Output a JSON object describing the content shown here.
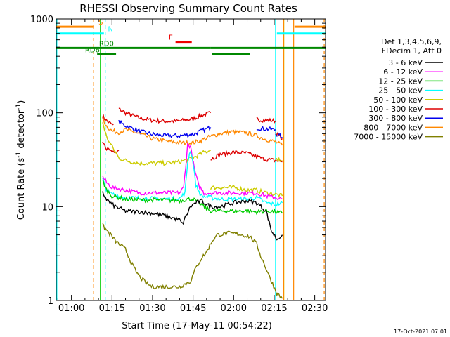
{
  "chart_data": {
    "type": "line",
    "title": "RHESSI Observing Summary Count Rates",
    "xlabel": "Start Time (17-May-11 00:54:22)",
    "ylabel_parts": {
      "main": "Count Rate (s",
      "sup": "-1",
      "rest": " detector",
      "sup2": "-1",
      "end": ")"
    },
    "xlim_minutes": [
      54.37,
      154.0
    ],
    "ylim": [
      1,
      1000
    ],
    "yscale": "log",
    "x_ticks": [
      {
        "minute": 60,
        "label": "01:00"
      },
      {
        "minute": 75,
        "label": "01:15"
      },
      {
        "minute": 90,
        "label": "01:30"
      },
      {
        "minute": 105,
        "label": "01:45"
      },
      {
        "minute": 120,
        "label": "02:00"
      },
      {
        "minute": 135,
        "label": "02:15"
      },
      {
        "minute": 150,
        "label": "02:30"
      }
    ],
    "y_ticks": [
      {
        "value": 1,
        "label": "1"
      },
      {
        "value": 10,
        "label": "10"
      },
      {
        "value": 100,
        "label": "100"
      },
      {
        "value": 1000,
        "label": "1000"
      }
    ],
    "legend": {
      "header": [
        "Det 1,3,4,5,6,9,",
        "FDecim 1, Att 0"
      ],
      "placement": "right",
      "entries": [
        {
          "label": "3 - 6 keV",
          "color": "#000000"
        },
        {
          "label": "6 - 12 keV",
          "color": "#ff00ff"
        },
        {
          "label": "12 - 25 keV",
          "color": "#00cc00"
        },
        {
          "label": "25 - 50 keV",
          "color": "#00ffff"
        },
        {
          "label": "50 - 100 keV",
          "color": "#cccc00"
        },
        {
          "label": "100 - 300 keV",
          "color": "#dd0000"
        },
        {
          "label": "300 - 800 keV",
          "color": "#0000ee"
        },
        {
          "label": "800 - 7000 keV",
          "color": "#ff8800"
        },
        {
          "label": "7000 - 15000 keV",
          "color": "#808000"
        }
      ]
    },
    "series": [
      {
        "color": "#dd0000",
        "segments": [
          [
            [
              71.5,
              92
            ],
            [
              72.5,
              85
            ],
            [
              74,
              78
            ],
            [
              75.5,
              74
            ]
          ],
          [
            [
              77.5,
              110
            ],
            [
              80,
              100
            ],
            [
              85,
              88
            ],
            [
              90,
              83
            ],
            [
              95,
              81
            ],
            [
              100,
              82
            ],
            [
              105,
              86
            ],
            [
              108,
              93
            ],
            [
              111.5,
              100
            ]
          ],
          [
            [
              128.5,
              86
            ],
            [
              130,
              84
            ],
            [
              133,
              83
            ],
            [
              135.5,
              82
            ]
          ],
          [
            [
              135.5,
              62
            ],
            [
              138,
              53
            ]
          ]
        ]
      },
      {
        "color": "#0000ee",
        "segments": [
          [
            [
              77.5,
              80
            ],
            [
              80,
              73
            ],
            [
              85,
              64
            ],
            [
              90,
              59
            ],
            [
              95,
              57
            ],
            [
              100,
              57
            ],
            [
              105,
              59
            ],
            [
              108,
              64
            ],
            [
              111.5,
              70
            ]
          ],
          [
            [
              128.5,
              69
            ],
            [
              130,
              68
            ],
            [
              133,
              67
            ],
            [
              135.5,
              66
            ]
          ],
          [
            [
              135.5,
              60
            ],
            [
              138,
              55
            ]
          ]
        ]
      },
      {
        "color": "#ff8800",
        "segments": [
          [
            [
              71.5,
              88
            ],
            [
              73,
              72
            ],
            [
              75,
              64
            ],
            [
              77.5,
              62
            ],
            [
              80,
              66
            ],
            [
              85,
              60
            ],
            [
              90,
              53
            ],
            [
              95,
              50
            ],
            [
              100,
              48
            ],
            [
              105,
              48
            ],
            [
              108,
              51
            ],
            [
              111.5,
              56
            ],
            [
              115,
              60
            ],
            [
              120,
              63
            ],
            [
              125,
              61
            ],
            [
              128.5,
              57
            ],
            [
              132,
              52
            ],
            [
              135.5,
              49
            ],
            [
              138,
              45
            ]
          ]
        ]
      },
      {
        "color": "#dd0000",
        "segments": [
          [
            [
              71.5,
              48
            ],
            [
              73,
              42
            ],
            [
              75,
              39
            ],
            [
              77.5,
              40
            ]
          ],
          [
            [
              111.5,
              32
            ],
            [
              115,
              36
            ],
            [
              120,
              38
            ],
            [
              125,
              37
            ],
            [
              128.5,
              34
            ],
            [
              132,
              32
            ],
            [
              135.5,
              31
            ],
            [
              138,
              30
            ]
          ]
        ]
      },
      {
        "color": "#cccc00",
        "segments": [
          [
            [
              71.5,
              80
            ],
            [
              73,
              55
            ],
            [
              75,
              44
            ],
            [
              77.5,
              33
            ],
            [
              80,
              31
            ],
            [
              85,
              29
            ],
            [
              90,
              29
            ],
            [
              95,
              29
            ],
            [
              100,
              30
            ],
            [
              105,
              33
            ],
            [
              108,
              37
            ],
            [
              111.5,
              40
            ]
          ],
          [
            [
              111.5,
              16
            ],
            [
              115,
              16
            ],
            [
              120,
              16
            ],
            [
              125,
              15
            ],
            [
              128.5,
              15
            ],
            [
              132,
              14
            ],
            [
              135.5,
              13.5
            ],
            [
              138,
              13
            ]
          ],
          [
            [
              135.5,
              32
            ],
            [
              138,
              31
            ]
          ]
        ]
      },
      {
        "color": "#ff00ff",
        "segments": [
          [
            [
              71.5,
              21
            ],
            [
              73,
              18
            ],
            [
              75,
              16
            ],
            [
              80,
              15
            ],
            [
              85,
              14
            ],
            [
              90,
              14
            ],
            [
              95,
              14
            ],
            [
              100,
              14
            ],
            [
              101.5,
              16
            ],
            [
              103,
              46
            ],
            [
              104,
              44
            ],
            [
              105.5,
              25
            ],
            [
              107,
              17
            ],
            [
              109,
              14
            ],
            [
              111.5,
              14
            ],
            [
              115,
              14
            ],
            [
              120,
              14
            ],
            [
              125,
              14
            ],
            [
              128.5,
              14
            ],
            [
              132,
              13
            ],
            [
              135.5,
              12.5
            ],
            [
              138,
              12
            ]
          ]
        ]
      },
      {
        "color": "#00ffff",
        "segments": [
          [
            [
              71.5,
              20
            ],
            [
              72.5,
              16
            ],
            [
              74,
              14
            ],
            [
              77.5,
              13
            ],
            [
              80,
              12.5
            ],
            [
              85,
              12.3
            ],
            [
              90,
              12.2
            ],
            [
              95,
              12.1
            ],
            [
              100,
              12.2
            ],
            [
              102,
              14
            ],
            [
              103,
              30
            ],
            [
              104,
              40
            ],
            [
              105,
              30
            ],
            [
              106,
              17
            ],
            [
              108,
              13
            ],
            [
              111.5,
              12.5
            ],
            [
              115,
              12
            ],
            [
              120,
              12
            ],
            [
              125,
              12
            ],
            [
              128.5,
              12.5
            ],
            [
              132,
              11
            ],
            [
              135.5,
              10.5
            ],
            [
              138,
              11
            ]
          ]
        ]
      },
      {
        "color": "#00cc00",
        "segments": [
          [
            [
              71.5,
              19
            ],
            [
              73,
              15
            ],
            [
              75,
              13
            ],
            [
              80,
              12
            ],
            [
              85,
              11.8
            ],
            [
              90,
              11.8
            ],
            [
              95,
              11.7
            ],
            [
              100,
              11.6
            ],
            [
              103,
              12
            ],
            [
              105,
              12
            ],
            [
              108,
              10.5
            ],
            [
              111.5,
              9
            ],
            [
              115,
              9
            ],
            [
              120,
              9
            ],
            [
              125,
              9
            ],
            [
              128.5,
              8.8
            ],
            [
              132,
              9
            ],
            [
              135.5,
              8.8
            ],
            [
              138,
              8.5
            ]
          ]
        ]
      },
      {
        "color": "#000000",
        "segments": [
          [
            [
              71.5,
              14
            ],
            [
              73,
              12
            ],
            [
              75,
              10.5
            ],
            [
              78,
              9.5
            ],
            [
              80,
              9
            ],
            [
              85,
              8.8
            ],
            [
              90,
              8.5
            ],
            [
              95,
              8.0
            ],
            [
              98,
              7.5
            ],
            [
              100,
              7.2
            ],
            [
              101,
              6.5
            ],
            [
              102,
              7.5
            ],
            [
              104,
              10
            ],
            [
              106,
              11
            ],
            [
              108,
              11.5
            ],
            [
              111.5,
              10
            ],
            [
              115,
              10
            ],
            [
              120,
              11
            ],
            [
              125,
              11.5
            ],
            [
              128.5,
              11
            ],
            [
              132,
              9
            ],
            [
              134,
              5.5
            ],
            [
              136,
              4.5
            ],
            [
              138,
              5
            ]
          ]
        ]
      },
      {
        "color": "#808000",
        "segments": [
          [
            [
              71.5,
              6.3
            ],
            [
              73,
              5.6
            ],
            [
              74.5,
              5.0
            ],
            [
              76,
              4.4
            ],
            [
              78,
              3.9
            ],
            [
              80,
              3.5
            ],
            [
              81,
              3.0
            ],
            [
              82.5,
              2.4
            ],
            [
              84,
              2.0
            ],
            [
              86,
              1.7
            ],
            [
              88,
              1.5
            ],
            [
              90,
              1.4
            ],
            [
              95,
              1.4
            ],
            [
              100,
              1.4
            ],
            [
              104,
              1.6
            ],
            [
              106,
              2.2
            ],
            [
              108,
              2.8
            ],
            [
              110,
              3.3
            ],
            [
              112,
              4.3
            ],
            [
              114,
              5.0
            ],
            [
              118,
              5.2
            ],
            [
              122,
              5.1
            ],
            [
              126,
              4.8
            ],
            [
              128.5,
              4.0
            ],
            [
              130,
              3.0
            ],
            [
              132,
              2.2
            ],
            [
              134,
              1.6
            ],
            [
              136,
              1.2
            ],
            [
              138,
              1.05
            ]
          ]
        ]
      }
    ],
    "state_bars": [
      {
        "label": "S",
        "color": "#ff8800",
        "y": 825,
        "segments": [
          [
            54.5,
            68
          ],
          [
            142.5,
            154
          ]
        ],
        "label_minute": 70
      },
      {
        "label": "N",
        "color": "#00ffff",
        "y": 700,
        "segments": [
          [
            54.5,
            72
          ],
          [
            136,
            154
          ]
        ],
        "label_minute": 73.5
      },
      {
        "label": "F",
        "color": "#ee0000",
        "y": 570,
        "segments": [
          [
            98.5,
            104.5
          ]
        ],
        "label_minute": 96
      },
      {
        "label": "RD0",
        "color": "#008800",
        "y": 490,
        "segments": [
          [
            54.5,
            111.5
          ],
          [
            111.5,
            154
          ]
        ],
        "label_minute": 70.2
      },
      {
        "label": "RD6",
        "color": "#008800",
        "y": 420,
        "segments": [
          [
            69.5,
            76.5
          ],
          [
            112,
            126
          ]
        ],
        "label_minute": 65
      }
    ],
    "vertical_lines": [
      {
        "minute": 54.6,
        "color": "#00ffff",
        "dashed": false
      },
      {
        "minute": 68.2,
        "color": "#ff8800",
        "dashed": true
      },
      {
        "minute": 70.7,
        "color": "#00cc00",
        "dashed": false
      },
      {
        "minute": 72.5,
        "color": "#00ffff",
        "dashed": true
      },
      {
        "minute": 135.5,
        "color": "#00ffff",
        "dashed": false
      },
      {
        "minute": 138.5,
        "color": "#ff8800",
        "dashed": false
      },
      {
        "minute": 139.0,
        "color": "#cccc00",
        "dashed": false
      },
      {
        "minute": 142.2,
        "color": "#ff8800",
        "dashed": false
      },
      {
        "minute": 153.5,
        "color": "#ff8800",
        "dashed": true
      }
    ]
  },
  "footer": {
    "timestamp": "17-Oct-2021 07:01"
  }
}
